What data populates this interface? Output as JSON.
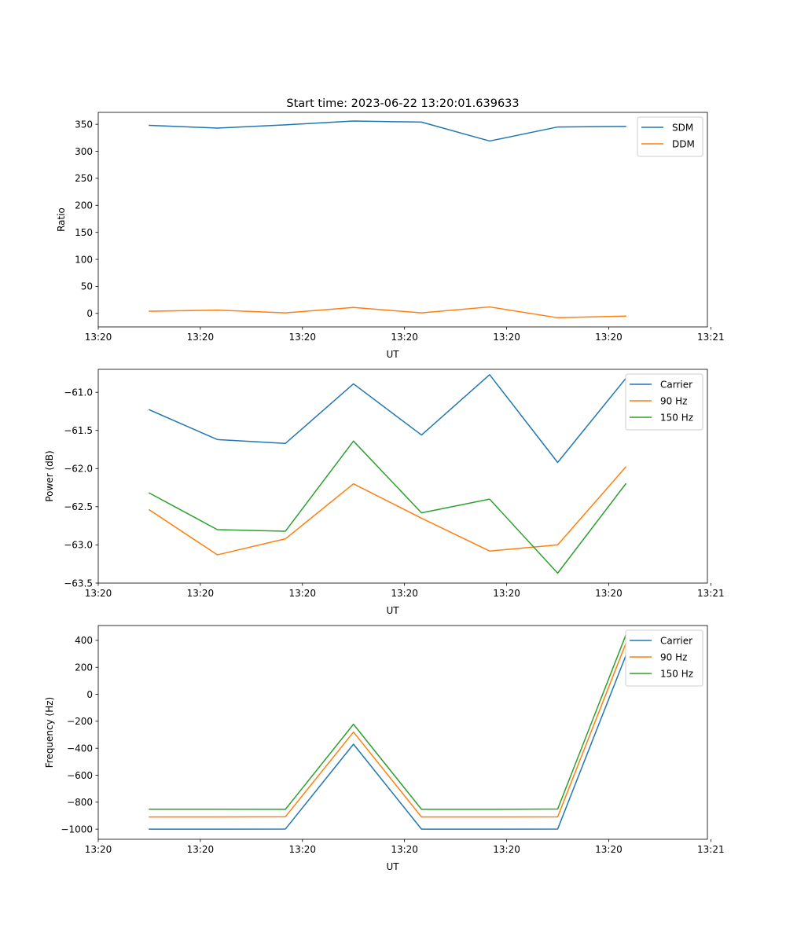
{
  "figure": {
    "title": "Start time: 2023-06-22 13:20:01.639633"
  },
  "chart_data": [
    {
      "type": "line",
      "ylabel": "Ratio",
      "xlabel": "UT",
      "x": [
        1,
        2,
        3,
        4,
        5,
        6,
        7,
        8
      ],
      "xlim": [
        0.25,
        9.2
      ],
      "xticks": [
        {
          "value": 0.25,
          "label": "13:20"
        },
        {
          "value": 1.75,
          "label": "13:20"
        },
        {
          "value": 3.25,
          "label": "13:20"
        },
        {
          "value": 4.75,
          "label": "13:20"
        },
        {
          "value": 6.25,
          "label": "13:20"
        },
        {
          "value": 7.75,
          "label": "13:20"
        },
        {
          "value": 9.25,
          "label": "13:21"
        }
      ],
      "ylim": [
        -25,
        372
      ],
      "yticks": [
        0,
        50,
        100,
        150,
        200,
        250,
        300,
        350
      ],
      "legend": "top-right",
      "series": [
        {
          "name": "SDM",
          "color": "#1f77b4",
          "values": [
            348,
            343,
            349,
            356,
            354,
            319,
            345,
            346
          ]
        },
        {
          "name": "DDM",
          "color": "#ff7f0e",
          "values": [
            4,
            6,
            1,
            11,
            1,
            12,
            -8,
            -5
          ]
        }
      ]
    },
    {
      "type": "line",
      "ylabel": "Power (dB)",
      "xlabel": "UT",
      "x": [
        1,
        2,
        3,
        4,
        5,
        6,
        7,
        8
      ],
      "xlim": [
        0.25,
        9.2
      ],
      "xticks": [
        {
          "value": 0.25,
          "label": "13:20"
        },
        {
          "value": 1.75,
          "label": "13:20"
        },
        {
          "value": 3.25,
          "label": "13:20"
        },
        {
          "value": 4.75,
          "label": "13:20"
        },
        {
          "value": 6.25,
          "label": "13:20"
        },
        {
          "value": 7.75,
          "label": "13:20"
        },
        {
          "value": 9.25,
          "label": "13:21"
        }
      ],
      "ylim": [
        -63.5,
        -60.7
      ],
      "yticks": [
        {
          "value": -63.5,
          "label": "−63.5"
        },
        {
          "value": -63.0,
          "label": "−63.0"
        },
        {
          "value": -62.5,
          "label": "−62.5"
        },
        {
          "value": -62.0,
          "label": "−62.0"
        },
        {
          "value": -61.5,
          "label": "−61.5"
        },
        {
          "value": -61.0,
          "label": "−61.0"
        }
      ],
      "legend": "top-right",
      "series": [
        {
          "name": "Carrier",
          "color": "#1f77b4",
          "values": [
            -61.23,
            -61.62,
            -61.67,
            -60.89,
            -61.56,
            -60.77,
            -61.92,
            -60.82
          ]
        },
        {
          "name": "90 Hz",
          "color": "#ff7f0e",
          "values": [
            -62.54,
            -63.13,
            -62.92,
            -62.2,
            -62.65,
            -63.08,
            -63.0,
            -61.98
          ]
        },
        {
          "name": "150 Hz",
          "color": "#2ca02c",
          "values": [
            -62.32,
            -62.8,
            -62.82,
            -61.64,
            -62.58,
            -62.4,
            -63.37,
            -62.2
          ]
        }
      ]
    },
    {
      "type": "line",
      "ylabel": "Frequency (Hz)",
      "xlabel": "UT",
      "x": [
        1,
        2,
        3,
        4,
        5,
        6,
        7,
        8
      ],
      "xlim": [
        0.25,
        9.2
      ],
      "xticks": [
        {
          "value": 0.25,
          "label": "13:20"
        },
        {
          "value": 1.75,
          "label": "13:20"
        },
        {
          "value": 3.25,
          "label": "13:20"
        },
        {
          "value": 4.75,
          "label": "13:20"
        },
        {
          "value": 6.25,
          "label": "13:20"
        },
        {
          "value": 7.75,
          "label": "13:20"
        },
        {
          "value": 9.25,
          "label": "13:21"
        }
      ],
      "ylim": [
        -1075,
        510
      ],
      "yticks": [
        {
          "value": -1000,
          "label": "−1000"
        },
        {
          "value": -800,
          "label": "−800"
        },
        {
          "value": -600,
          "label": "−600"
        },
        {
          "value": -400,
          "label": "−400"
        },
        {
          "value": -200,
          "label": "−200"
        },
        {
          "value": 0,
          "label": "0"
        },
        {
          "value": 200,
          "label": "200"
        },
        {
          "value": 400,
          "label": "400"
        }
      ],
      "legend": "top-right",
      "series": [
        {
          "name": "Carrier",
          "color": "#1f77b4",
          "values": [
            -1000,
            -1000,
            -999,
            -370,
            -1000,
            -1000,
            -999,
            285
          ]
        },
        {
          "name": "90 Hz",
          "color": "#ff7f0e",
          "values": [
            -910,
            -910,
            -908,
            -280,
            -910,
            -910,
            -909,
            375
          ]
        },
        {
          "name": "150 Hz",
          "color": "#2ca02c",
          "values": [
            -852,
            -852,
            -853,
            -222,
            -853,
            -853,
            -851,
            437
          ]
        }
      ]
    }
  ]
}
